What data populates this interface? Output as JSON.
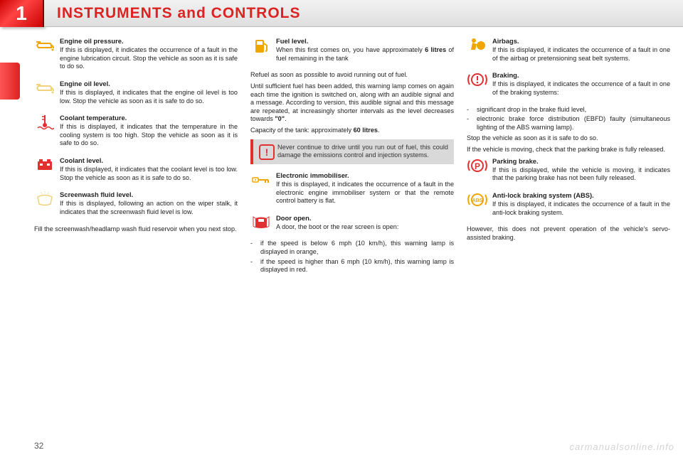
{
  "chapterNum": "1",
  "chapterTitle": "INSTRUMENTS and CONTROLS",
  "pageNum": "32",
  "watermark": "carmanualsonline.info",
  "colors": {
    "headerRed": "#d22",
    "iconAmber": "#f0a500",
    "iconRed": "#e03030",
    "iconOutlineRed": "#c8141e"
  },
  "col1": [
    {
      "icon": "oilcan-amber",
      "title": "Engine oil pressure.",
      "body": "If this is displayed, it indicates the occurrence of a fault in the engine lubrication circuit. Stop the vehicle as soon as it is safe to do so."
    },
    {
      "icon": "oilcan-amber-faded",
      "title": "Engine oil level.",
      "body": "If this is displayed, it indicates that the engine oil level is too low. Stop the vehicle as soon as it is safe to do so."
    },
    {
      "icon": "temp-red",
      "title": "Coolant temperature.",
      "body": "If this is displayed, it indicates that the temperature in the cool­ing system is too high. Stop the vehicle as soon as it is safe to do so."
    },
    {
      "icon": "battery-red",
      "title": "Coolant level.",
      "body": "If this is displayed, it indicates that the coolant level is too low. Stop the vehicle as soon as it is safe to do so."
    },
    {
      "icon": "washer-amber",
      "title": "Screenwash ﬂuid level.",
      "body": "If this is displayed, following an action on the wiper stalk, it indi­cates that the screenwash ﬂuid level is low."
    }
  ],
  "col1_tail": "Fill the screenwash/headlamp wash ﬂuid reservoir when you next stop.",
  "col2": {
    "fuel": {
      "title": "Fuel level.",
      "body": "When this ﬁrst comes on, you have approximately <b>6 litres</b> of fuel remaining in the tank"
    },
    "fuel_paras": [
      "Refuel as soon as possible to avoid run­ning out of fuel.",
      "Until sufﬁcient fuel has been added, this warning lamp comes on again each time the ignition is switched on, along with an audible signal and a message. According to version, this audible signal and this message are repeated, at in­creasingly shorter intervals as the level decreases towards <b>\"0\"</b>.",
      "Capacity of the tank: approximately <b>60 litres</b>."
    ],
    "alert": "Never continue to drive until you run out of fuel, this could damage the emissions control and injection systems.",
    "immob": {
      "title": "Electronic immobiliser.",
      "body": "If this is displayed, it indicates the occurrence of a fault in the electronic engine immobiliser system or that the remote control bat­tery is ﬂat."
    },
    "door": {
      "title": "Door open.",
      "body": "A door, the boot or the rear screen is open:"
    },
    "door_list": [
      "if the speed is below 6 mph (10 km/h), this warning lamp is displayed in orange,",
      "if the speed is higher than 6 mph (10 km/h), this warning lamp is displayed in red."
    ]
  },
  "col3": {
    "airbag": {
      "title": "Airbags.",
      "body": "If this is displayed, it indicates the occurrence of a fault in one of the airbag or pretensioning seat belt systems."
    },
    "braking": {
      "title": "Braking.",
      "body": "If this is displayed, it indicates the occurrence of a fault in one of the braking systems:"
    },
    "braking_list": [
      "signiﬁcant drop in the brake ﬂuid level,",
      "electronic brake force distribution (EBFD) faulty (simultaneous lighting of the ABS warning lamp)."
    ],
    "braking_tail": [
      "Stop the vehicle as soon as it is safe to do so.",
      "If the vehicle is moving, check that the parking brake is fully released."
    ],
    "parking": {
      "title": "Parking brake.",
      "body": "If this is displayed, while the ve­hicle is moving, it indicates that the parking brake has not been fully released."
    },
    "abs": {
      "title": "Anti-lock braking system (ABS).",
      "body": "If this is displayed, it indicates the occurrence of a fault in the anti-lock braking system."
    },
    "abs_tail": "However, this does not prevent operation of the vehicle's servo-assisted braking."
  }
}
